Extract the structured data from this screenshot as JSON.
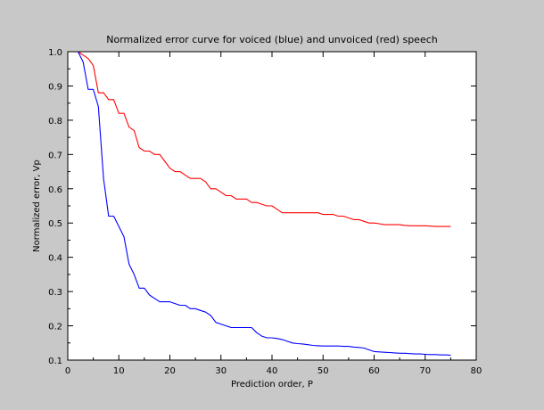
{
  "chart_data": {
    "type": "line",
    "title": "Normalized error curve for voiced (blue) and unvoiced (red) speech",
    "xlabel": "Prediction order, P",
    "ylabel": "Normalized error, Vp",
    "xlim": [
      0,
      80
    ],
    "ylim": [
      0.1,
      1.0
    ],
    "xticks": [
      0,
      10,
      20,
      30,
      40,
      50,
      60,
      70,
      80
    ],
    "yticks": [
      0.1,
      0.2,
      0.3,
      0.4,
      0.5,
      0.6,
      0.7,
      0.8,
      0.9,
      1.0
    ],
    "grid": false,
    "legend": "none",
    "series": [
      {
        "color": "#ff0000",
        "x": [
          2,
          3,
          4,
          5,
          6,
          7,
          8,
          9,
          10,
          11,
          12,
          13,
          14,
          15,
          16,
          17,
          18,
          19,
          20,
          21,
          22,
          23,
          24,
          25,
          26,
          27,
          28,
          29,
          30,
          31,
          32,
          33,
          34,
          35,
          36,
          37,
          38,
          39,
          40,
          41,
          42,
          43,
          44,
          45,
          46,
          47,
          48,
          49,
          50,
          51,
          52,
          53,
          54,
          55,
          56,
          57,
          58,
          59,
          60,
          61,
          62,
          63,
          64,
          65,
          66,
          67,
          68,
          69,
          70,
          71,
          72,
          73,
          74,
          75
        ],
        "y": [
          1.0,
          0.99,
          0.98,
          0.96,
          0.88,
          0.88,
          0.86,
          0.86,
          0.82,
          0.82,
          0.78,
          0.77,
          0.72,
          0.71,
          0.71,
          0.7,
          0.7,
          0.68,
          0.66,
          0.65,
          0.65,
          0.64,
          0.63,
          0.63,
          0.63,
          0.62,
          0.6,
          0.6,
          0.59,
          0.58,
          0.58,
          0.57,
          0.57,
          0.57,
          0.56,
          0.56,
          0.555,
          0.55,
          0.55,
          0.54,
          0.53,
          0.53,
          0.53,
          0.53,
          0.53,
          0.53,
          0.53,
          0.53,
          0.525,
          0.525,
          0.525,
          0.52,
          0.52,
          0.515,
          0.51,
          0.51,
          0.505,
          0.5,
          0.5,
          0.498,
          0.495,
          0.495,
          0.495,
          0.495,
          0.493,
          0.492,
          0.492,
          0.492,
          0.492,
          0.491,
          0.49,
          0.49,
          0.49,
          0.49
        ]
      },
      {
        "color": "#0000ff",
        "x": [
          2,
          3,
          4,
          5,
          6,
          7,
          8,
          9,
          10,
          11,
          12,
          13,
          14,
          15,
          16,
          17,
          18,
          19,
          20,
          21,
          22,
          23,
          24,
          25,
          26,
          27,
          28,
          29,
          30,
          31,
          32,
          33,
          34,
          35,
          36,
          37,
          38,
          39,
          40,
          41,
          42,
          43,
          44,
          45,
          46,
          47,
          48,
          49,
          50,
          51,
          52,
          53,
          54,
          55,
          56,
          57,
          58,
          59,
          60,
          61,
          62,
          63,
          64,
          65,
          66,
          67,
          68,
          69,
          70,
          71,
          72,
          73,
          74,
          75
        ],
        "y": [
          1.0,
          0.97,
          0.89,
          0.89,
          0.84,
          0.63,
          0.52,
          0.52,
          0.49,
          0.46,
          0.38,
          0.35,
          0.31,
          0.31,
          0.29,
          0.28,
          0.27,
          0.27,
          0.27,
          0.265,
          0.26,
          0.26,
          0.25,
          0.25,
          0.245,
          0.24,
          0.23,
          0.21,
          0.205,
          0.2,
          0.195,
          0.195,
          0.195,
          0.195,
          0.195,
          0.18,
          0.17,
          0.165,
          0.165,
          0.163,
          0.16,
          0.155,
          0.15,
          0.148,
          0.147,
          0.145,
          0.143,
          0.142,
          0.141,
          0.141,
          0.141,
          0.141,
          0.14,
          0.14,
          0.138,
          0.137,
          0.135,
          0.13,
          0.125,
          0.124,
          0.123,
          0.122,
          0.121,
          0.12,
          0.12,
          0.119,
          0.118,
          0.118,
          0.117,
          0.116,
          0.116,
          0.115,
          0.115,
          0.114
        ]
      }
    ]
  }
}
